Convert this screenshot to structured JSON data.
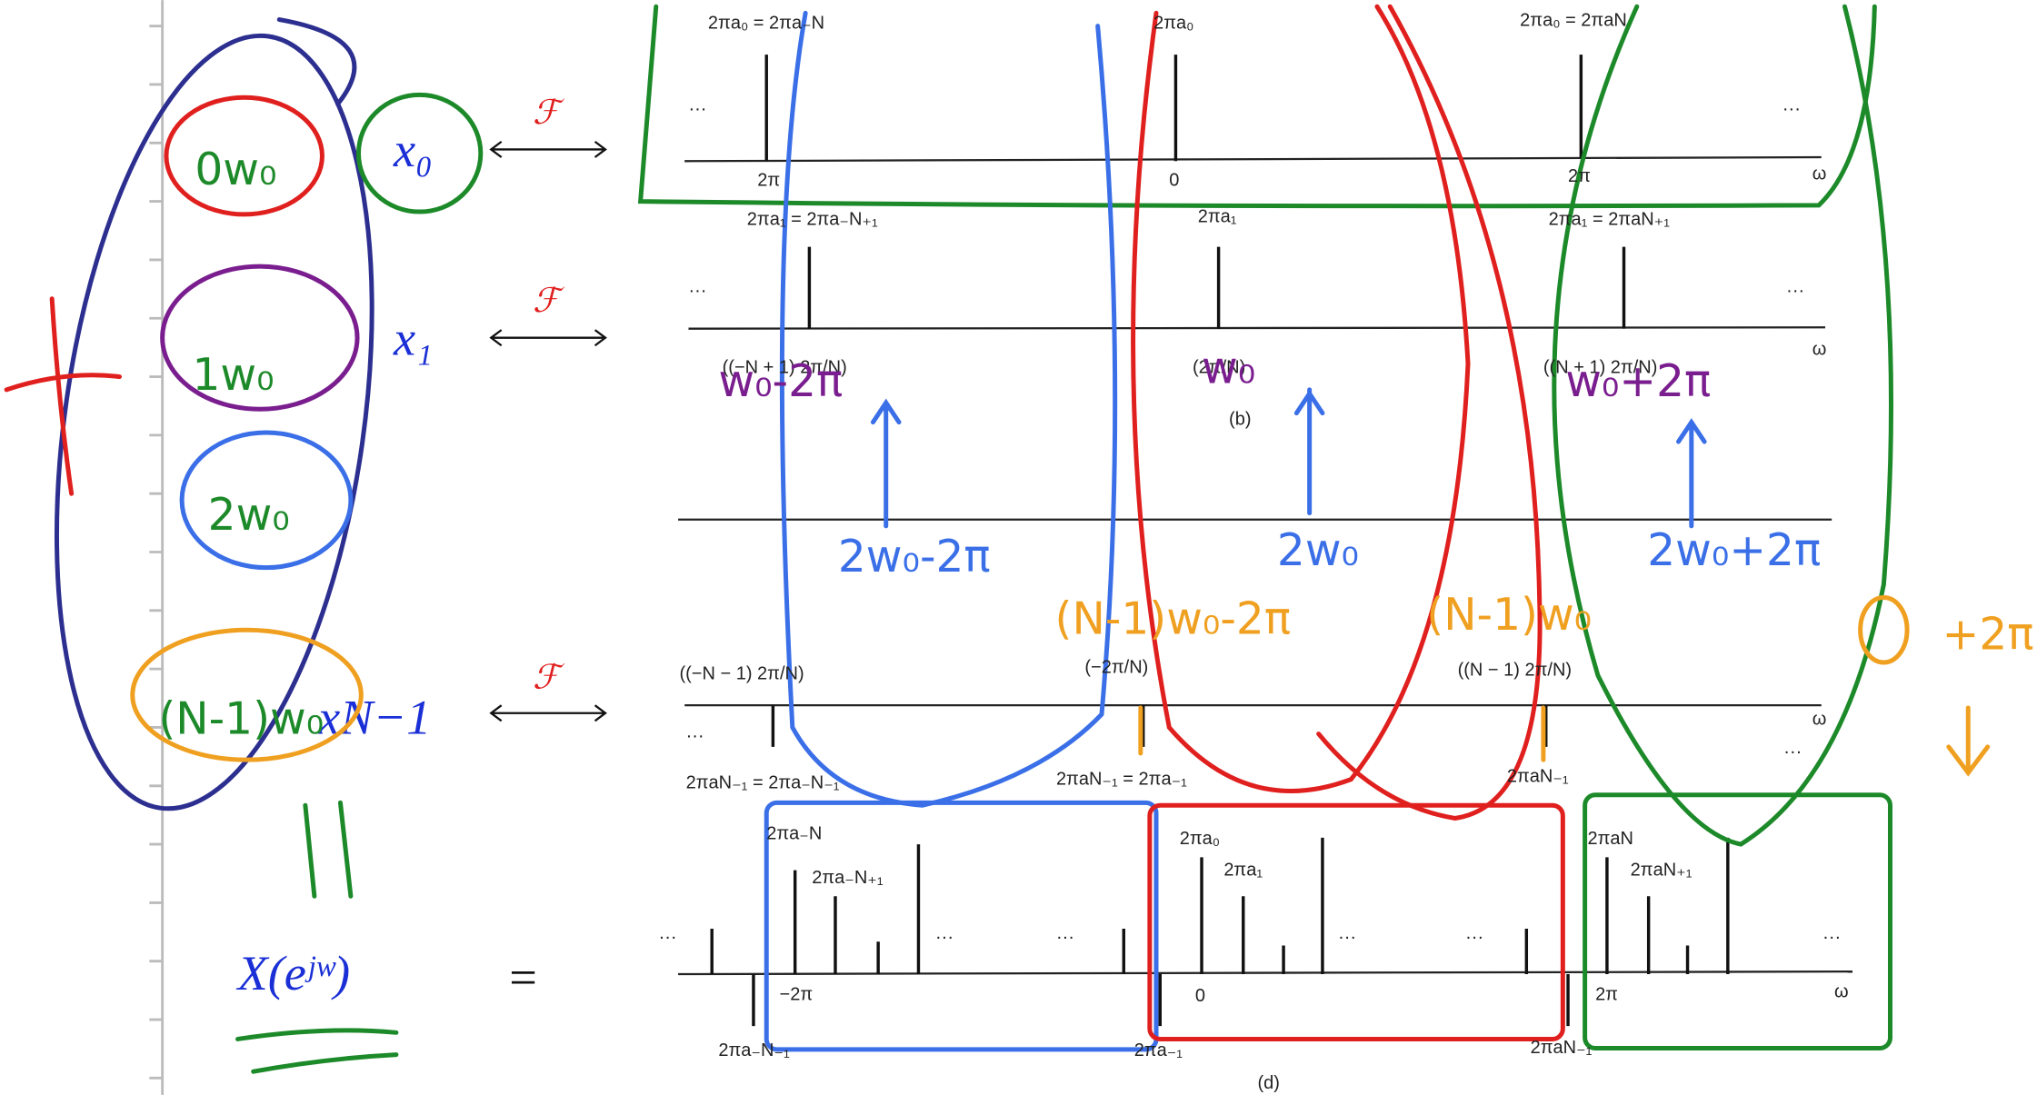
{
  "math": {
    "signals": [
      "x₀",
      "x₁",
      "xN−1"
    ],
    "transforms": [
      "ℱ",
      "ℱ",
      "ℱ"
    ],
    "result": "X(eʲʷ)",
    "equals": "="
  },
  "figure": {
    "labels": [
      "2πa₀ = 2πa₋N",
      "2πa₀",
      "2πa₀ = 2πaN",
      "···",
      "···",
      "2π",
      "0",
      "2π",
      "ω",
      "2πa₁ = 2πa₋N₊₁",
      "2πa₁",
      "2πa₁ = 2πaN₊₁",
      "···",
      "···",
      "((−N + 1) 2π/N)",
      "(2π/N)",
      "((N + 1) 2π/N)",
      "ω",
      "(b)",
      "((−N − 1) 2π/N)",
      "(−2π/N)",
      "((N − 1) 2π/N)",
      "ω",
      "···",
      "···",
      "2πaN₋₁ = 2πa₋N₋₁",
      "2πaN₋₁ = 2πa₋₁",
      "2πaN₋₁",
      "2πa₋N",
      "2πa₋N₊₁",
      "2πa₀",
      "2πa₁",
      "2πaN",
      "2πaN₊₁",
      "···",
      "···",
      "···",
      "···",
      "···",
      "···",
      "−2π",
      "0",
      "2π",
      "ω",
      "2πa₋N₋₁",
      "2πa₋₁",
      "2πaN₋₁",
      "(d)"
    ]
  },
  "annotations": [
    "0w₀",
    "1w₀",
    "2w₀",
    "(N-1)w₀",
    "w₀-2π",
    "w₀",
    "w₀+2π",
    "2w₀-2π",
    "2w₀",
    "2w₀+2π",
    "(N-1)w₀-2π",
    "(N-1)w₀",
    "+2π"
  ]
}
